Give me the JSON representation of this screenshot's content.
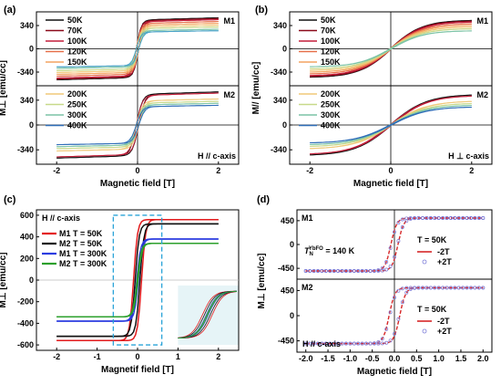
{
  "panel_labels": [
    "(a)",
    "(b)",
    "(c)",
    "(d)"
  ],
  "chart_data": [
    {
      "id": "a",
      "type": "line",
      "xlabel": "Magnetic field [T]",
      "ylabel": "M⊥ [emu/cc]",
      "xlim": [
        -2.5,
        2.5
      ],
      "x_ticks": [
        -2,
        0,
        2
      ],
      "annotation": "H // c-axis",
      "subplots": [
        {
          "label": "M1",
          "ylim": [
            -500,
            500
          ],
          "y_ticks": [
            -340,
            0,
            340
          ],
          "kind": "sharp",
          "width": 0.12,
          "series": [
            {
              "name": "50K",
              "sat": 420,
              "color": "#111111"
            },
            {
              "name": "70K",
              "sat": 410,
              "color": "#8b0a1a"
            },
            {
              "name": "100K",
              "sat": 395,
              "color": "#c41e3a"
            },
            {
              "name": "120K",
              "sat": 370,
              "color": "#e8704a"
            },
            {
              "name": "150K",
              "sat": 345,
              "color": "#f4a460"
            },
            {
              "name": "",
              "sat": 320,
              "color": "#f0c878"
            },
            {
              "name": "",
              "sat": 295,
              "color": "#c8d98a"
            },
            {
              "name": "",
              "sat": 265,
              "color": "#7cc4a6"
            },
            {
              "name": "",
              "sat": 245,
              "color": "#4aa3c8"
            }
          ]
        },
        {
          "label": "M2",
          "ylim": [
            -500,
            500
          ],
          "y_ticks": [
            -340,
            0,
            340
          ],
          "kind": "sharp",
          "width": 0.15,
          "series": [
            {
              "name": "",
              "sat": 420,
              "color": "#111111"
            },
            {
              "name": "",
              "sat": 405,
              "color": "#c41e3a"
            },
            {
              "name": "200K",
              "sat": 330,
              "color": "#f0c878"
            },
            {
              "name": "250K",
              "sat": 300,
              "color": "#c8d98a"
            },
            {
              "name": "300K",
              "sat": 275,
              "color": "#7cc4a6"
            },
            {
              "name": "400K",
              "sat": 250,
              "color": "#2e6db8"
            }
          ]
        }
      ]
    },
    {
      "id": "b",
      "type": "line",
      "xlabel": "Magnetic field [T]",
      "ylabel": "M// [emu/cc]",
      "xlim": [
        -2.5,
        2.5
      ],
      "x_ticks": [
        -2,
        0,
        2
      ],
      "annotation": "H ⊥ c-axis",
      "subplots": [
        {
          "label": "M1",
          "ylim": [
            -500,
            500
          ],
          "y_ticks": [
            -340,
            0,
            340
          ],
          "kind": "soft",
          "width": 0.8,
          "series": [
            {
              "name": "50K",
              "sat": 420,
              "color": "#111111"
            },
            {
              "name": "70K",
              "sat": 410,
              "color": "#8b0a1a"
            },
            {
              "name": "100K",
              "sat": 395,
              "color": "#c41e3a"
            },
            {
              "name": "120K",
              "sat": 370,
              "color": "#e8704a"
            },
            {
              "name": "150K",
              "sat": 345,
              "color": "#f4a460"
            },
            {
              "name": "",
              "sat": 320,
              "color": "#f0c878"
            },
            {
              "name": "",
              "sat": 295,
              "color": "#c8d98a"
            },
            {
              "name": "",
              "sat": 265,
              "color": "#7cc4a6"
            }
          ]
        },
        {
          "label": "M2",
          "ylim": [
            -500,
            500
          ],
          "y_ticks": [
            -340,
            0,
            340
          ],
          "kind": "soft",
          "width": 0.9,
          "series": [
            {
              "name": "",
              "sat": 420,
              "color": "#111111"
            },
            {
              "name": "",
              "sat": 405,
              "color": "#c41e3a"
            },
            {
              "name": "200K",
              "sat": 330,
              "color": "#f0c878"
            },
            {
              "name": "250K",
              "sat": 300,
              "color": "#c8d98a"
            },
            {
              "name": "300K",
              "sat": 275,
              "color": "#7cc4a6"
            },
            {
              "name": "400K",
              "sat": 250,
              "color": "#2e6db8"
            }
          ]
        }
      ]
    },
    {
      "id": "c",
      "type": "line",
      "xlabel": "Magnetif field [T]",
      "ylabel": "M⊥ [emu/cc]",
      "xlim": [
        -2.5,
        2.5
      ],
      "ylim": [
        -650,
        650
      ],
      "x_ticks": [
        -2,
        -1,
        0,
        1,
        2
      ],
      "y_ticks": [
        -600,
        -400,
        -200,
        0,
        200,
        400,
        600
      ],
      "legend_title": "H // c-axis",
      "zoom_box": {
        "x": [
          -0.6,
          0.6
        ],
        "y": [
          -600,
          600
        ]
      },
      "series": [
        {
          "name": "M1 T = 50K",
          "sat": 560,
          "coercive": 0.1,
          "width": 0.1,
          "color": "#e31a1c"
        },
        {
          "name": "M2 T = 50K",
          "sat": 520,
          "coercive": 0.06,
          "width": 0.1,
          "color": "#111111"
        },
        {
          "name": "M1 T = 300K",
          "sat": 380,
          "coercive": 0.02,
          "width": 0.1,
          "color": "#2b3ce0"
        },
        {
          "name": "M2 T = 300K",
          "sat": 340,
          "coercive": 0.01,
          "width": 0.1,
          "color": "#2ca02c"
        }
      ]
    },
    {
      "id": "d",
      "type": "line",
      "xlabel": "Magnetic field [T]",
      "ylabel": "M⊥ [emu/cc]",
      "xlim": [
        -2.2,
        2.2
      ],
      "x_ticks": [
        -2.0,
        -1.5,
        -1.0,
        -0.5,
        0.0,
        0.5,
        1.0,
        1.5,
        2.0
      ],
      "x_tick_labels": [
        "-2.0",
        "-1.5",
        "-1.0",
        "-0.5",
        "0.0",
        "0.5",
        "1.0",
        "1.5",
        "2.0"
      ],
      "annotation": "H // c-axis",
      "subplots": [
        {
          "label": "M1",
          "ylim": [
            -620,
            620
          ],
          "y_ticks": [
            -450,
            0,
            450
          ],
          "sat": 500,
          "coercive": 0.08,
          "temp_label": "T = 50K",
          "neel_label": "T_N^YbFO = 140 K",
          "series": [
            {
              "name": "-2T",
              "color": "#d62728",
              "style": "line"
            },
            {
              "name": "+2T",
              "color": "#7b7bd8",
              "style": "marker"
            }
          ]
        },
        {
          "label": "M2",
          "ylim": [
            -620,
            620
          ],
          "y_ticks": [
            -450,
            0,
            450
          ],
          "sat": 500,
          "coercive": 0.12,
          "temp_label": "T = 50K",
          "series": [
            {
              "name": "-2T",
              "color": "#d62728",
              "style": "line"
            },
            {
              "name": "+2T",
              "color": "#7b7bd8",
              "style": "marker"
            }
          ]
        }
      ]
    }
  ]
}
